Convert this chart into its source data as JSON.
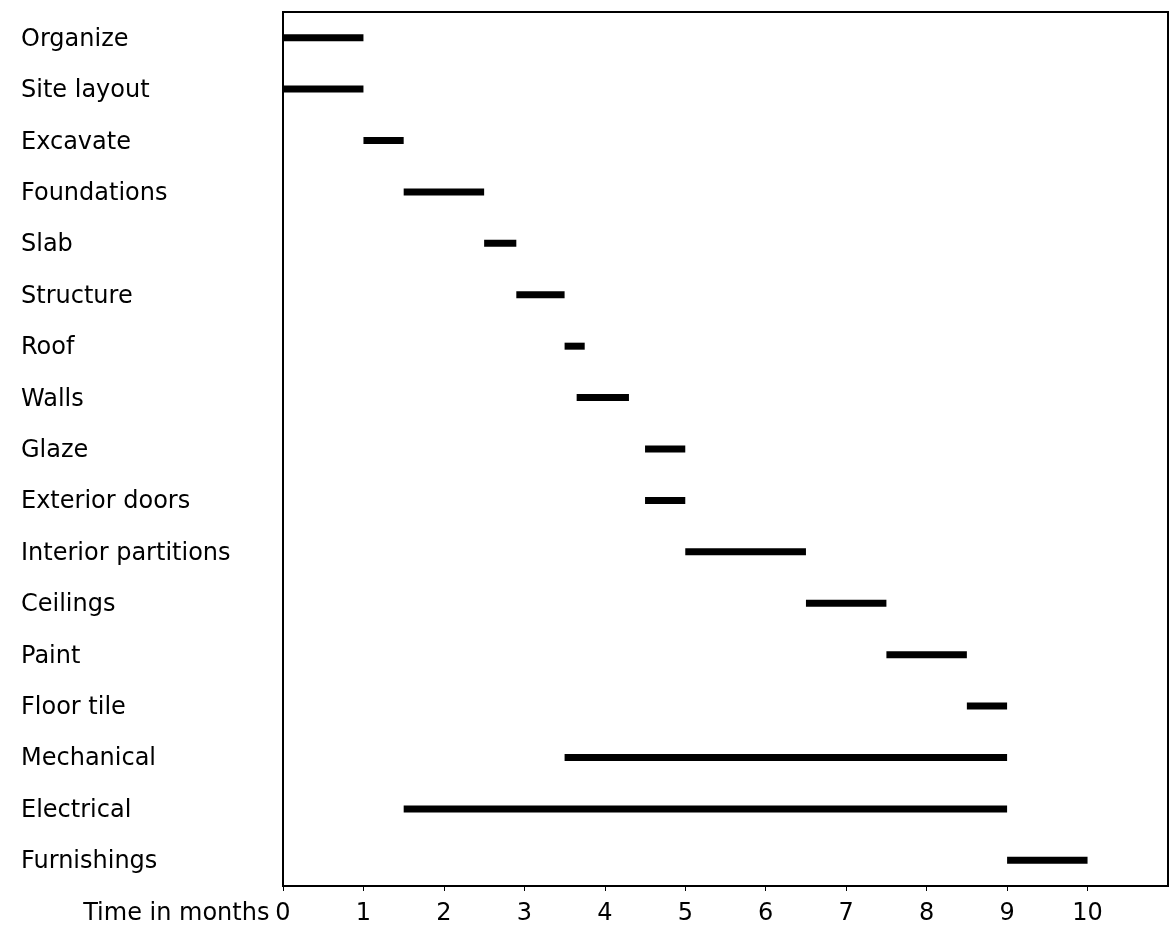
{
  "chart_data": {
    "type": "bar",
    "orientation": "horizontal",
    "xlabel": "Time in months",
    "categories": [
      "Organize",
      "Site layout",
      "Excavate",
      "Foundations",
      "Slab",
      "Structure",
      "Roof",
      "Walls",
      "Glaze",
      "Exterior doors",
      "Interior partitions",
      "Ceilings",
      "Paint",
      "Floor tile",
      "Mechanical",
      "Electrical",
      "Furnishings"
    ],
    "base": [
      0,
      0,
      1,
      1.5,
      2.5,
      2.9,
      3.5,
      3.65,
      4.5,
      4.5,
      5,
      6.5,
      7.5,
      8.5,
      3.5,
      1.5,
      9
    ],
    "values": [
      1,
      1,
      0.5,
      1,
      0.4,
      0.6,
      0.25,
      0.65,
      0.5,
      0.5,
      1.5,
      1,
      1,
      0.5,
      5.5,
      7.5,
      1
    ],
    "color": "#000000",
    "xlim": [
      0,
      11
    ],
    "xticks": [
      0,
      1,
      2,
      3,
      4,
      5,
      6,
      7,
      8,
      9,
      10
    ],
    "grid": false
  }
}
